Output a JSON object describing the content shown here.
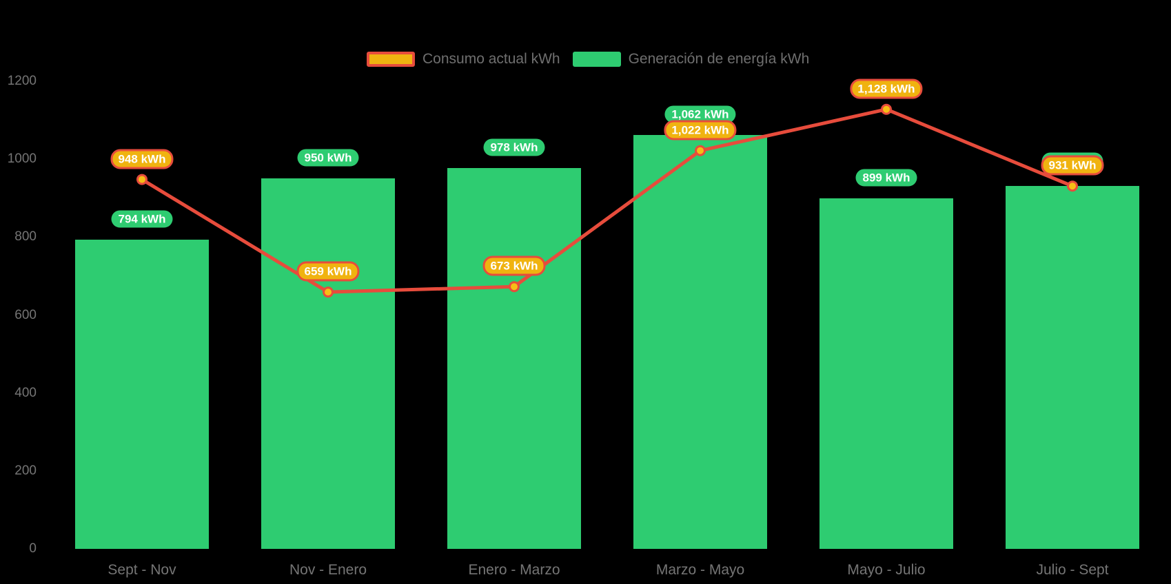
{
  "colors": {
    "background": "#000000",
    "bar_fill": "#2ECC71",
    "line_stroke": "#E74C3C",
    "point_fill": "#F7BE16",
    "line_badge_fill": "#F0B310",
    "line_badge_border": "#E74C3C",
    "badge_text": "#FFFFFF",
    "axis_text": "#757575",
    "legend_text": "#6F6F6F"
  },
  "legend": {
    "items": [
      {
        "label": "Consumo actual kWh",
        "swatch": "line-swatch"
      },
      {
        "label": "Generación de energía kWh",
        "swatch": "bar-swatch"
      }
    ]
  },
  "chart_data": {
    "type": "bar",
    "subtype": "bar-with-line-overlay",
    "categories": [
      "Sept - Nov",
      "Nov - Enero",
      "Enero - Marzo",
      "Marzo - Mayo",
      "Mayo - Julio",
      "Julio - Sept"
    ],
    "series": [
      {
        "name": "Consumo actual kWh",
        "type": "line",
        "color": "#E74C3C",
        "values": [
          948,
          659,
          673,
          1022,
          1128,
          931
        ],
        "labels": [
          "948 kWh",
          "659 kWh",
          "673 kWh",
          "1,022 kWh",
          "1,128 kWh",
          "931 kWh"
        ]
      },
      {
        "name": "Generación de energía kWh",
        "type": "bar",
        "color": "#2ECC71",
        "values": [
          794,
          950,
          978,
          1062,
          899,
          931
        ],
        "labels": [
          "794 kWh",
          "950 kWh",
          "978 kWh",
          "1,062 kWh",
          "899 kWh",
          "931 kWh"
        ]
      }
    ],
    "title": "",
    "xlabel": "",
    "ylabel": "",
    "ylim": [
      0,
      1200
    ],
    "yticks": [
      0,
      200,
      400,
      600,
      800,
      1000,
      1200
    ],
    "grid": false,
    "legend_position": "top-center"
  }
}
